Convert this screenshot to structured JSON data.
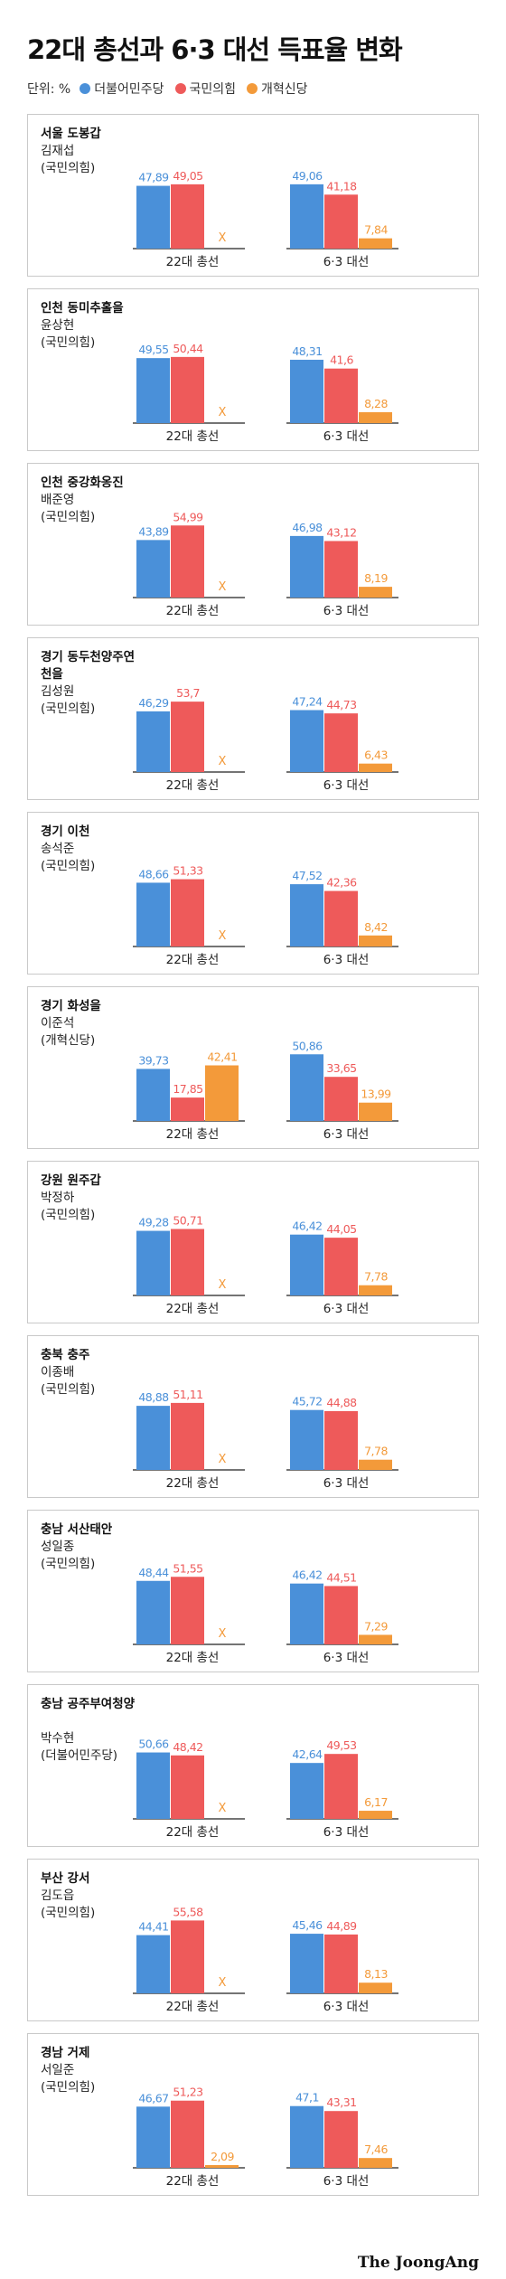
{
  "title": "22대 총선과 6·3 대선 득표율 변화",
  "legend": {
    "unit": "단위: %",
    "items": [
      {
        "label": "더불어민주당",
        "color": "#4a90d9"
      },
      {
        "label": "국민의힘",
        "color": "#ee5a5a"
      },
      {
        "label": "개혁신당",
        "color": "#f39a3a"
      }
    ]
  },
  "source": "The JoongAng",
  "chart_data": {
    "type": "bar",
    "group_labels": [
      "22대 총선",
      "6·3 대선"
    ],
    "series_names": [
      "더불어민주당",
      "국민의힘",
      "개혁신당"
    ],
    "colors": [
      "#4a90d9",
      "#ee5a5a",
      "#f39a3a"
    ],
    "missing_mark": "X",
    "districts": [
      {
        "district": "서울 도봉갑",
        "candidate": "김재섭",
        "party": "(국민의힘)",
        "groups": [
          [
            "47,89",
            "49,05",
            "X"
          ],
          [
            "49,06",
            "41,18",
            "7,84"
          ]
        ]
      },
      {
        "district": "인천 동미추홀을",
        "candidate": "윤상현",
        "party": "(국민의힘)",
        "groups": [
          [
            "49,55",
            "50,44",
            "X"
          ],
          [
            "48,31",
            "41,6",
            "8,28"
          ]
        ]
      },
      {
        "district": "인천 중강화옹진",
        "candidate": "배준영",
        "party": "(국민의힘)",
        "groups": [
          [
            "43,89",
            "54,99",
            "X"
          ],
          [
            "46,98",
            "43,12",
            "8,19"
          ]
        ]
      },
      {
        "district": "경기 동두천양주연천을",
        "candidate": "김성원",
        "party": "(국민의힘)",
        "groups": [
          [
            "46,29",
            "53,7",
            "X"
          ],
          [
            "47,24",
            "44,73",
            "6,43"
          ]
        ]
      },
      {
        "district": "경기 이천",
        "candidate": "송석준",
        "party": "(국민의힘)",
        "groups": [
          [
            "48,66",
            "51,33",
            "X"
          ],
          [
            "47,52",
            "42,36",
            "8,42"
          ]
        ]
      },
      {
        "district": "경기 화성을",
        "candidate": "이준석",
        "party": "(개혁신당)",
        "groups": [
          [
            "39,73",
            "17,85",
            "42,41"
          ],
          [
            "50,86",
            "33,65",
            "13,99"
          ]
        ]
      },
      {
        "district": "강원 원주갑",
        "candidate": "박정하",
        "party": "(국민의힘)",
        "groups": [
          [
            "49,28",
            "50,71",
            "X"
          ],
          [
            "46,42",
            "44,05",
            "7,78"
          ]
        ]
      },
      {
        "district": "충북 충주",
        "candidate": "이종배",
        "party": "(국민의힘)",
        "groups": [
          [
            "48,88",
            "51,11",
            "X"
          ],
          [
            "45,72",
            "44,88",
            "7,78"
          ]
        ]
      },
      {
        "district": "충남 서산태안",
        "candidate": "성일종",
        "party": "(국민의힘)",
        "groups": [
          [
            "48,44",
            "51,55",
            "X"
          ],
          [
            "46,42",
            "44,51",
            "7,29"
          ]
        ]
      },
      {
        "district": "충남 공주부여청양",
        "candidate": "박수현",
        "party": "(더불어민주당)",
        "groups": [
          [
            "50,66",
            "48,42",
            "X"
          ],
          [
            "42,64",
            "49,53",
            "6,17"
          ]
        ]
      },
      {
        "district": "부산 강서",
        "candidate": "김도읍",
        "party": "(국민의힘)",
        "groups": [
          [
            "44,41",
            "55,58",
            "X"
          ],
          [
            "45,46",
            "44,89",
            "8,13"
          ]
        ]
      },
      {
        "district": "경남 거제",
        "candidate": "서일준",
        "party": "(국민의힘)",
        "groups": [
          [
            "46,67",
            "51,23",
            "2,09"
          ],
          [
            "47,1",
            "43,31",
            "7,46"
          ]
        ]
      }
    ]
  }
}
